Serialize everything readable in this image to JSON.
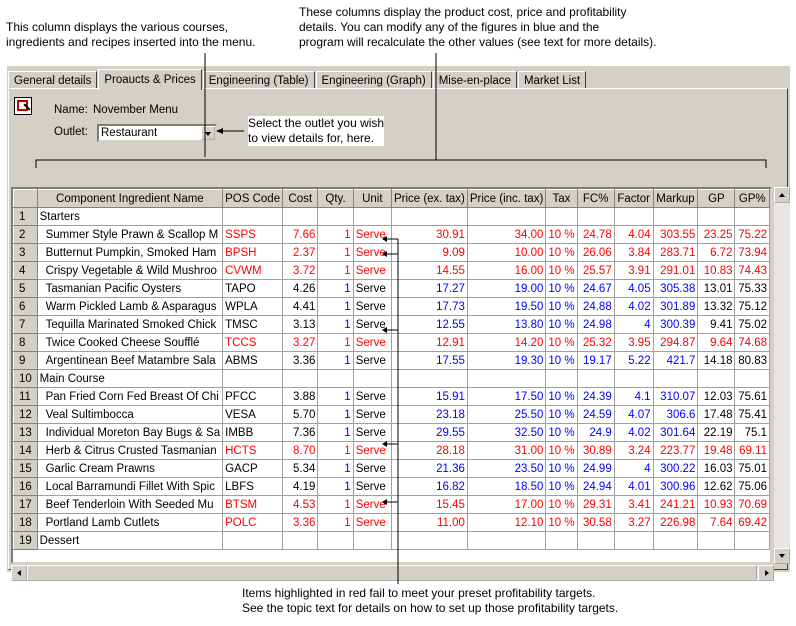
{
  "annotations": {
    "left_callout": [
      "This column displays the various courses,",
      "ingredients and recipes inserted into the menu."
    ],
    "top_callout": [
      "These columns display the product cost, price and profitability",
      "details.  You can modify any of the figures in blue and the",
      "program will recalculate the other values (see text for more details)."
    ],
    "outlet_callout": [
      "Select the outlet you wish",
      "to view details for, here."
    ],
    "bottom_callout": [
      "Items highlighted in red fail to meet your preset profitability targets.",
      "See the topic text for details on how to set up those profitability targets."
    ]
  },
  "tabs": [
    {
      "label": "General details",
      "active": false
    },
    {
      "label": "Proaucts & Prices",
      "active": true
    },
    {
      "label": "Engineering (Table)",
      "active": false
    },
    {
      "label": "Engineering (Graph)",
      "active": false
    },
    {
      "label": "Mise-en-place",
      "active": false
    },
    {
      "label": "Market List",
      "active": false
    }
  ],
  "form": {
    "name_label": "Name:",
    "name_value": "November Menu",
    "outlet_label": "Outlet:",
    "outlet_value": "Restaurant"
  },
  "columns": [
    "",
    "Component Ingredient Name",
    "POS Code",
    "Cost",
    "Qty.",
    "Unit",
    "Price (ex. tax)",
    "Price (inc. tax)",
    "Tax",
    "FC%",
    "Factor",
    "Markup",
    "GP",
    "GP%"
  ],
  "rows": [
    {
      "n": "1",
      "category": "Starters"
    },
    {
      "n": "2",
      "name": "Summer Style Prawn & Scallop M",
      "code": "SSPS",
      "cost": "7.66",
      "qty": "1",
      "unit": "Serve",
      "pex": "30.91",
      "pinc": "34.00",
      "tax": "10 %",
      "fc": "24.78",
      "factor": "4.04",
      "markup": "303.55",
      "gp": "23.25",
      "gpp": "75.22",
      "red": true
    },
    {
      "n": "3",
      "name": "Butternut Pumpkin, Smoked Ham",
      "code": "BPSH",
      "cost": "2.37",
      "qty": "1",
      "unit": "Serve",
      "pex": "9.09",
      "pinc": "10.00",
      "tax": "10 %",
      "fc": "26.06",
      "factor": "3.84",
      "markup": "283.71",
      "gp": "6.72",
      "gpp": "73.94",
      "red": true
    },
    {
      "n": "4",
      "name": "Crispy Vegetable & Wild Mushroo",
      "code": "CVWM",
      "cost": "3.72",
      "qty": "1",
      "unit": "Serve",
      "pex": "14.55",
      "pinc": "16.00",
      "tax": "10 %",
      "fc": "25.57",
      "factor": "3.91",
      "markup": "291.01",
      "gp": "10.83",
      "gpp": "74.43",
      "red": true
    },
    {
      "n": "5",
      "name": "Tasmanian Pacific Oysters",
      "code": "TAPO",
      "cost": "4.26",
      "qty": "1",
      "unit": "Serve",
      "pex": "17.27",
      "pinc": "19.00",
      "tax": "10 %",
      "fc": "24.67",
      "factor": "4.05",
      "markup": "305.38",
      "gp": "13.01",
      "gpp": "75.33",
      "red": false
    },
    {
      "n": "6",
      "name": "Warm Pickled Lamb & Asparagus",
      "code": "WPLA",
      "cost": "4.41",
      "qty": "1",
      "unit": "Serve",
      "pex": "17.73",
      "pinc": "19.50",
      "tax": "10 %",
      "fc": "24.88",
      "factor": "4.02",
      "markup": "301.89",
      "gp": "13.32",
      "gpp": "75.12",
      "red": false
    },
    {
      "n": "7",
      "name": "Tequilla Marinated Smoked Chick",
      "code": "TMSC",
      "cost": "3.13",
      "qty": "1",
      "unit": "Serve",
      "pex": "12.55",
      "pinc": "13.80",
      "tax": "10 %",
      "fc": "24.98",
      "factor": "4",
      "markup": "300.39",
      "gp": "9.41",
      "gpp": "75.02",
      "red": false
    },
    {
      "n": "8",
      "name": "Twice Cooked Cheese Soufflé",
      "code": "TCCS",
      "cost": "3.27",
      "qty": "1",
      "unit": "Serve",
      "pex": "12.91",
      "pinc": "14.20",
      "tax": "10 %",
      "fc": "25.32",
      "factor": "3.95",
      "markup": "294.87",
      "gp": "9.64",
      "gpp": "74.68",
      "red": true
    },
    {
      "n": "9",
      "name": "Argentinean Beef Matambre Sala",
      "code": "ABMS",
      "cost": "3.36",
      "qty": "1",
      "unit": "Serve",
      "pex": "17.55",
      "pinc": "19.30",
      "tax": "10 %",
      "fc": "19.17",
      "factor": "5.22",
      "markup": "421.7",
      "gp": "14.18",
      "gpp": "80.83",
      "red": false
    },
    {
      "n": "10",
      "category": "Main Course"
    },
    {
      "n": "11",
      "name": "Pan Fried Corn Fed Breast Of Chi",
      "code": "PFCC",
      "cost": "3.88",
      "qty": "1",
      "unit": "Serve",
      "pex": "15.91",
      "pinc": "17.50",
      "tax": "10 %",
      "fc": "24.39",
      "factor": "4.1",
      "markup": "310.07",
      "gp": "12.03",
      "gpp": "75.61",
      "red": false
    },
    {
      "n": "12",
      "name": "Veal Sultimbocca",
      "code": "VESA",
      "cost": "5.70",
      "qty": "1",
      "unit": "Serve",
      "pex": "23.18",
      "pinc": "25.50",
      "tax": "10 %",
      "fc": "24.59",
      "factor": "4.07",
      "markup": "306.6",
      "gp": "17.48",
      "gpp": "75.41",
      "red": false
    },
    {
      "n": "13",
      "name": "Individual Moreton Bay Bugs & Sa",
      "code": "IMBB",
      "cost": "7.36",
      "qty": "1",
      "unit": "Serve",
      "pex": "29.55",
      "pinc": "32.50",
      "tax": "10 %",
      "fc": "24.9",
      "factor": "4.02",
      "markup": "301.64",
      "gp": "22.19",
      "gpp": "75.1",
      "red": false
    },
    {
      "n": "14",
      "name": "Herb & Citrus Crusted Tasmanian",
      "code": "HCTS",
      "cost": "8.70",
      "qty": "1",
      "unit": "Serve",
      "pex": "28.18",
      "pinc": "31.00",
      "tax": "10 %",
      "fc": "30.89",
      "factor": "3.24",
      "markup": "223.77",
      "gp": "19.48",
      "gpp": "69.11",
      "red": true
    },
    {
      "n": "15",
      "name": "Garlic Cream Prawns",
      "code": "GACP",
      "cost": "5.34",
      "qty": "1",
      "unit": "Serve",
      "pex": "21.36",
      "pinc": "23.50",
      "tax": "10 %",
      "fc": "24.99",
      "factor": "4",
      "markup": "300.22",
      "gp": "16.03",
      "gpp": "75.01",
      "red": false
    },
    {
      "n": "16",
      "name": "Local Barramundi Fillet With Spic",
      "code": "LBFS",
      "cost": "4.19",
      "qty": "1",
      "unit": "Serve",
      "pex": "16.82",
      "pinc": "18.50",
      "tax": "10 %",
      "fc": "24.94",
      "factor": "4.01",
      "markup": "300.96",
      "gp": "12.62",
      "gpp": "75.06",
      "red": false
    },
    {
      "n": "17",
      "name": "Beef Tenderloin With Seeded Mu",
      "code": "BTSM",
      "cost": "4.53",
      "qty": "1",
      "unit": "Serve",
      "pex": "15.45",
      "pinc": "17.00",
      "tax": "10 %",
      "fc": "29.31",
      "factor": "3.41",
      "markup": "241.21",
      "gp": "10.93",
      "gpp": "70.69",
      "red": true
    },
    {
      "n": "18",
      "name": "Portland Lamb Cutlets",
      "code": "POLC",
      "cost": "3.36",
      "qty": "1",
      "unit": "Serve",
      "pex": "11.00",
      "pinc": "12.10",
      "tax": "10 %",
      "fc": "30.58",
      "factor": "3.27",
      "markup": "226.98",
      "gp": "7.64",
      "gpp": "69.42",
      "red": true
    },
    {
      "n": "19",
      "category": "Dessert"
    }
  ]
}
